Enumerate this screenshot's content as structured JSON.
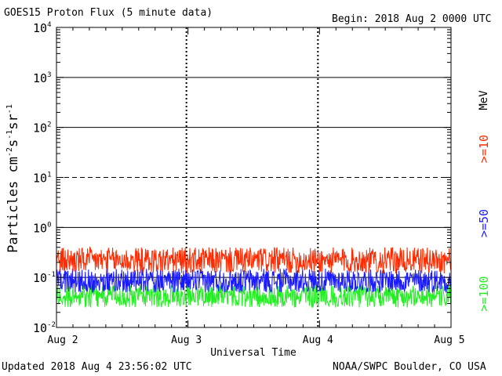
{
  "header": {
    "title": "GOES15 Proton Flux (5 minute data)",
    "begin": "Begin: 2018 Aug 2 0000 UTC"
  },
  "footer": {
    "updated": "Updated 2018 Aug  4 23:56:02 UTC",
    "credit": "NOAA/SWPC Boulder, CO USA"
  },
  "chart_data": {
    "type": "line",
    "title": "GOES15 Proton Flux (5 minute data)",
    "xlabel": "Universal Time",
    "ylabel": "Particles cm⁻²s⁻¹sr⁻¹",
    "y_scale": "log",
    "ylim": [
      0.01,
      10000
    ],
    "y_ticks": [
      {
        "base": "10",
        "exp": "-2"
      },
      {
        "base": "10",
        "exp": "-1"
      },
      {
        "base": "10",
        "exp": "0"
      },
      {
        "base": "10",
        "exp": "1"
      },
      {
        "base": "10",
        "exp": "2"
      },
      {
        "base": "10",
        "exp": "3"
      },
      {
        "base": "10",
        "exp": "4"
      }
    ],
    "x_ticks": [
      "Aug 2",
      "Aug 3",
      "Aug 4",
      "Aug 5"
    ],
    "xlim": [
      "2018-08-02 00:00",
      "2018-08-05 00:00"
    ],
    "threshold_lines": [
      {
        "value": 10,
        "style": "dashed"
      },
      {
        "value": 1,
        "style": "solid"
      },
      {
        "value": 0.1,
        "style": "solid"
      }
    ],
    "grid": true,
    "right_label_unit": "MeV",
    "series": [
      {
        "name": ">=10",
        "color": "#ff2a00",
        "typical_range": [
          0.12,
          0.4
        ],
        "mean": 0.2
      },
      {
        "name": ">=50",
        "color": "#1a1aff",
        "typical_range": [
          0.05,
          0.15
        ],
        "mean": 0.08
      },
      {
        "name": ">=100",
        "color": "#22ee22",
        "typical_range": [
          0.025,
          0.07
        ],
        "mean": 0.04
      }
    ]
  }
}
